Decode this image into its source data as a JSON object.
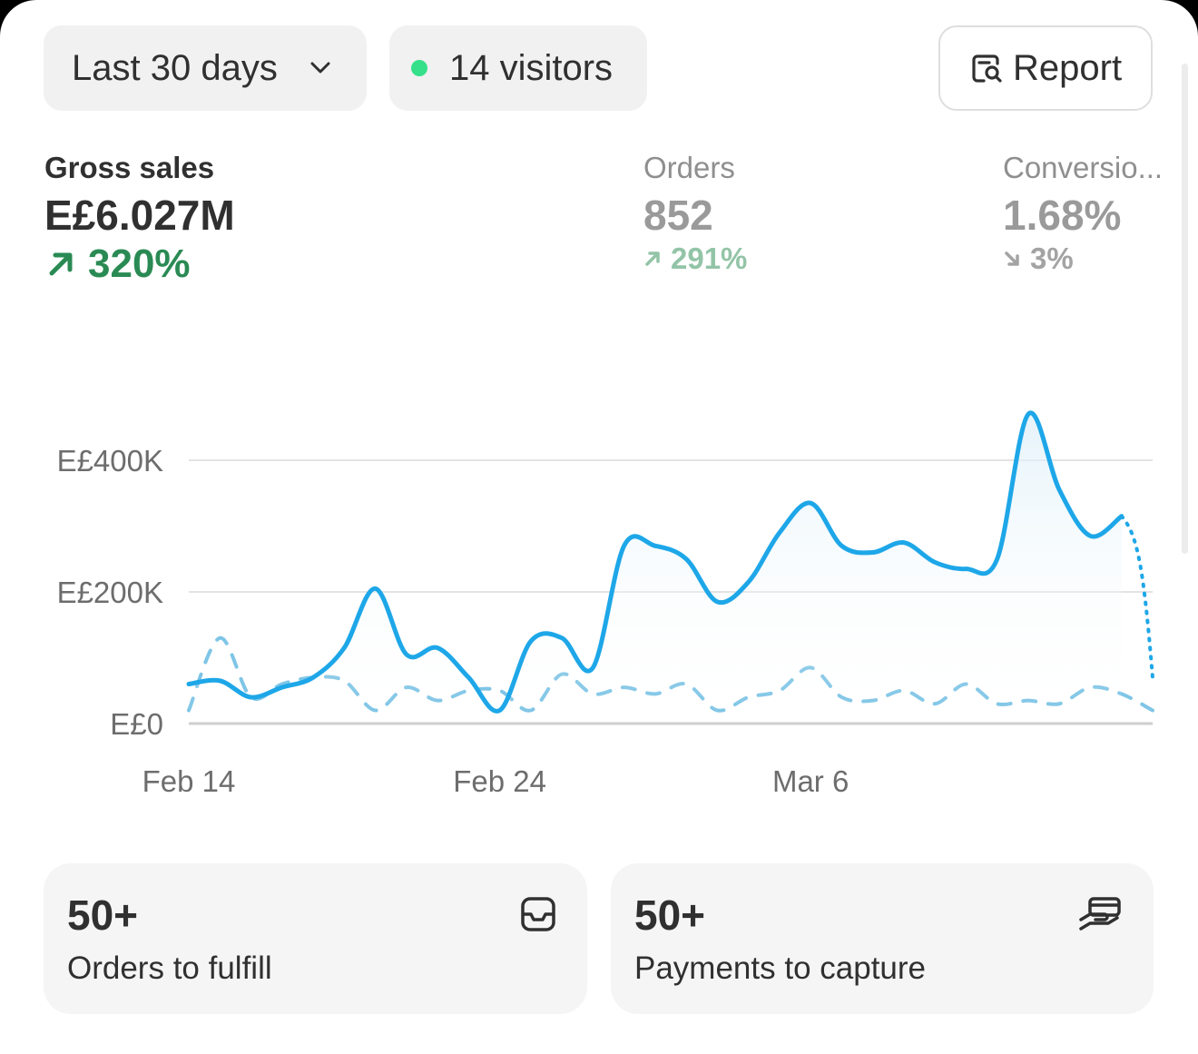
{
  "filters": {
    "date_range": "Last 30 days",
    "visitors": "14 visitors",
    "live_dot_color": "#36e08a"
  },
  "report_button": {
    "label": "Report",
    "icon": "report-search-icon"
  },
  "metrics": [
    {
      "label": "Gross sales",
      "value": "E£6.027M",
      "change": "320%",
      "direction": "up"
    },
    {
      "label": "Orders",
      "value": "852",
      "change": "291%",
      "direction": "up"
    },
    {
      "label": "Conversio...",
      "value": "1.68%",
      "change": "3%",
      "direction": "down"
    }
  ],
  "chart_data": {
    "type": "line",
    "x_ticks": [
      "Feb 14",
      "Feb 24",
      "Mar 6"
    ],
    "y_ticks": [
      "E£0",
      "E£200K",
      "E£400K"
    ],
    "ylim": [
      0,
      400000
    ],
    "series": [
      {
        "style": "solid",
        "color": "#1ea7e8",
        "values": [
          60000,
          65000,
          40000,
          55000,
          70000,
          115000,
          205000,
          105000,
          115000,
          70000,
          20000,
          125000,
          130000,
          85000,
          270000,
          270000,
          250000,
          185000,
          215000,
          290000,
          335000,
          270000,
          260000,
          275000,
          245000,
          235000,
          250000,
          470000,
          355000,
          285000,
          315000,
          70000
        ]
      },
      {
        "style": "dashed",
        "color": "#7fc5e6",
        "values": [
          20000,
          130000,
          40000,
          60000,
          70000,
          65000,
          20000,
          55000,
          35000,
          50000,
          50000,
          20000,
          75000,
          45000,
          55000,
          45000,
          60000,
          20000,
          40000,
          50000,
          85000,
          40000,
          35000,
          50000,
          30000,
          60000,
          30000,
          35000,
          30000,
          55000,
          45000,
          20000
        ]
      }
    ]
  },
  "tiles": [
    {
      "value": "50+",
      "caption": "Orders to fulfill",
      "icon": "inbox-icon"
    },
    {
      "value": "50+",
      "caption": "Payments to capture",
      "icon": "payment-hand-icon"
    }
  ]
}
